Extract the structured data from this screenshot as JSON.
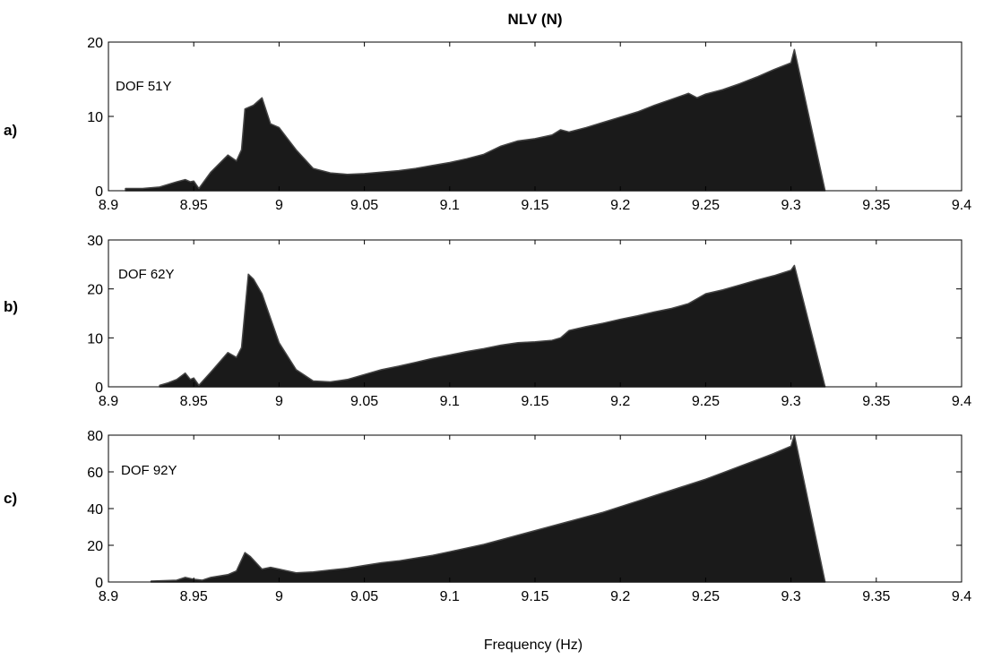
{
  "chart_data": {
    "type": "area",
    "title": "NLV (N)",
    "xlabel": "Frequency (Hz)",
    "xlim": [
      8.9,
      9.4
    ],
    "xticks": [
      "8.9",
      "8.95",
      "9",
      "9.05",
      "9.1",
      "9.15",
      "9.2",
      "9.25",
      "9.3",
      "9.35",
      "9.4"
    ],
    "colors": {
      "fill": "#1a1a1a",
      "stroke": "#444444",
      "axis": "#000000"
    },
    "grid": false,
    "panels": [
      {
        "tag": "a)",
        "annotation": "DOF 51Y",
        "ylim": [
          0,
          20
        ],
        "yticks": [
          "0",
          "10",
          "20"
        ],
        "x": [
          8.91,
          8.92,
          8.93,
          8.94,
          8.945,
          8.948,
          8.95,
          8.953,
          8.96,
          8.97,
          8.975,
          8.978,
          8.98,
          8.985,
          8.99,
          8.995,
          9.0,
          9.005,
          9.01,
          9.02,
          9.03,
          9.04,
          9.05,
          9.06,
          9.07,
          9.08,
          9.09,
          9.1,
          9.11,
          9.12,
          9.13,
          9.14,
          9.15,
          9.16,
          9.165,
          9.17,
          9.18,
          9.19,
          9.2,
          9.21,
          9.22,
          9.23,
          9.24,
          9.245,
          9.25,
          9.26,
          9.27,
          9.28,
          9.29,
          9.3,
          9.302,
          9.32
        ],
        "y": [
          0.3,
          0.3,
          0.5,
          1.2,
          1.5,
          1.2,
          1.3,
          0.3,
          2.5,
          4.8,
          4.0,
          5.5,
          11.0,
          11.5,
          12.5,
          9.0,
          8.5,
          7.0,
          5.5,
          3.0,
          2.4,
          2.2,
          2.3,
          2.5,
          2.7,
          3.0,
          3.4,
          3.8,
          4.3,
          4.9,
          6.0,
          6.7,
          7.0,
          7.5,
          8.2,
          7.9,
          8.5,
          9.2,
          9.9,
          10.6,
          11.5,
          12.3,
          13.1,
          12.5,
          13.0,
          13.6,
          14.4,
          15.3,
          16.3,
          17.2,
          19.0,
          0
        ]
      },
      {
        "tag": "b)",
        "annotation": "DOF 62Y",
        "ylim": [
          0,
          30
        ],
        "yticks": [
          "0",
          "10",
          "20",
          "30"
        ],
        "x": [
          8.93,
          8.935,
          8.94,
          8.945,
          8.948,
          8.95,
          8.953,
          8.96,
          8.97,
          8.975,
          8.978,
          8.982,
          8.985,
          8.99,
          8.995,
          9.0,
          9.01,
          9.02,
          9.03,
          9.04,
          9.05,
          9.06,
          9.07,
          9.08,
          9.09,
          9.1,
          9.11,
          9.12,
          9.13,
          9.14,
          9.15,
          9.16,
          9.165,
          9.17,
          9.18,
          9.19,
          9.2,
          9.21,
          9.22,
          9.23,
          9.24,
          9.245,
          9.25,
          9.26,
          9.27,
          9.28,
          9.29,
          9.3,
          9.302,
          9.32
        ],
        "y": [
          0.3,
          0.8,
          1.5,
          2.8,
          1.5,
          1.8,
          0.3,
          3.0,
          7.0,
          6.0,
          8.0,
          23.0,
          22.0,
          19.0,
          14.0,
          9.0,
          3.5,
          1.2,
          1.0,
          1.5,
          2.5,
          3.5,
          4.2,
          5.0,
          5.8,
          6.5,
          7.2,
          7.8,
          8.5,
          9.0,
          9.2,
          9.5,
          10.0,
          11.5,
          12.3,
          13.0,
          13.8,
          14.5,
          15.3,
          16.0,
          17.0,
          18.0,
          19.0,
          19.8,
          20.8,
          21.8,
          22.7,
          23.8,
          24.8,
          0
        ]
      },
      {
        "tag": "c)",
        "annotation": "DOF 92Y",
        "ylim": [
          0,
          80
        ],
        "yticks": [
          "0",
          "20",
          "40",
          "60",
          "80"
        ],
        "x": [
          8.925,
          8.94,
          8.945,
          8.95,
          8.955,
          8.96,
          8.97,
          8.975,
          8.98,
          8.983,
          8.987,
          8.99,
          8.995,
          9.0,
          9.01,
          9.02,
          9.03,
          9.04,
          9.05,
          9.06,
          9.07,
          9.08,
          9.09,
          9.1,
          9.11,
          9.12,
          9.13,
          9.14,
          9.15,
          9.16,
          9.17,
          9.18,
          9.19,
          9.2,
          9.21,
          9.22,
          9.23,
          9.24,
          9.25,
          9.26,
          9.27,
          9.28,
          9.29,
          9.3,
          9.302,
          9.32
        ],
        "y": [
          0.5,
          1.0,
          2.5,
          1.5,
          1.0,
          2.5,
          4.0,
          6.0,
          16.0,
          14.0,
          10.0,
          7.0,
          8.0,
          7.0,
          5.0,
          5.5,
          6.5,
          7.5,
          9.0,
          10.5,
          11.5,
          13.0,
          14.5,
          16.5,
          18.5,
          20.5,
          23.0,
          25.5,
          28.0,
          30.5,
          33.0,
          35.5,
          38.0,
          41.0,
          44.0,
          47.0,
          50.0,
          53.0,
          56.0,
          59.5,
          63.0,
          66.5,
          70.0,
          74.0,
          80.0,
          0
        ]
      }
    ]
  }
}
